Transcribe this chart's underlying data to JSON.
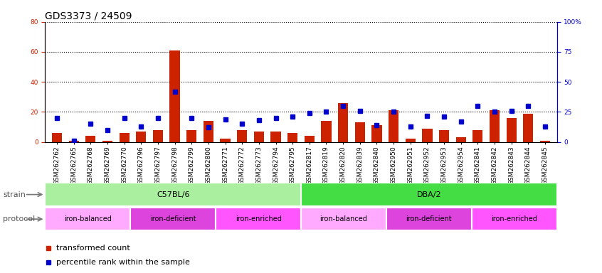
{
  "title": "GDS3373 / 24509",
  "samples": [
    "GSM262762",
    "GSM262765",
    "GSM262768",
    "GSM262769",
    "GSM262770",
    "GSM262796",
    "GSM262797",
    "GSM262798",
    "GSM262799",
    "GSM262800",
    "GSM262771",
    "GSM262772",
    "GSM262773",
    "GSM262794",
    "GSM262795",
    "GSM262817",
    "GSM262819",
    "GSM262820",
    "GSM262839",
    "GSM262840",
    "GSM262950",
    "GSM262951",
    "GSM262952",
    "GSM262953",
    "GSM262954",
    "GSM262841",
    "GSM262842",
    "GSM262843",
    "GSM262844",
    "GSM262845"
  ],
  "bar_values": [
    6,
    1,
    4,
    1,
    6,
    7,
    8,
    61,
    8,
    14,
    2,
    8,
    7,
    7,
    6,
    4,
    14,
    26,
    13,
    11,
    21,
    2,
    9,
    8,
    3,
    8,
    21,
    16,
    19,
    1
  ],
  "dot_values": [
    20,
    1,
    15,
    10,
    20,
    13,
    20,
    42,
    20,
    12,
    19,
    15,
    18,
    20,
    21,
    24,
    25,
    30,
    26,
    14,
    25,
    13,
    22,
    21,
    17,
    30,
    25,
    26,
    30,
    13
  ],
  "ylim_left": [
    0,
    80
  ],
  "ylim_right": [
    0,
    100
  ],
  "yticks_left": [
    0,
    20,
    40,
    60,
    80
  ],
  "yticks_right": [
    0,
    25,
    50,
    75,
    100
  ],
  "strain_groups": [
    {
      "label": "C57BL/6",
      "start": 0,
      "end": 15,
      "color": "#AAEEA0"
    },
    {
      "label": "DBA/2",
      "start": 15,
      "end": 30,
      "color": "#44DD44"
    }
  ],
  "protocol_groups": [
    {
      "label": "iron-balanced",
      "start": 0,
      "end": 5,
      "color": "#FFAAFF"
    },
    {
      "label": "iron-deficient",
      "start": 5,
      "end": 10,
      "color": "#DD44DD"
    },
    {
      "label": "iron-enriched",
      "start": 10,
      "end": 15,
      "color": "#FF66FF"
    },
    {
      "label": "iron-balanced",
      "start": 15,
      "end": 20,
      "color": "#FFAAFF"
    },
    {
      "label": "iron-deficient",
      "start": 20,
      "end": 25,
      "color": "#DD44DD"
    },
    {
      "label": "iron-enriched",
      "start": 25,
      "end": 30,
      "color": "#FF66FF"
    }
  ],
  "bar_color": "#CC2200",
  "dot_color": "#0000CC",
  "grid_color": "#000000",
  "title_fontsize": 10,
  "tick_fontsize": 6.5,
  "label_fontsize": 8,
  "left_axis_color": "#CC2200",
  "right_axis_color": "#0000CC"
}
